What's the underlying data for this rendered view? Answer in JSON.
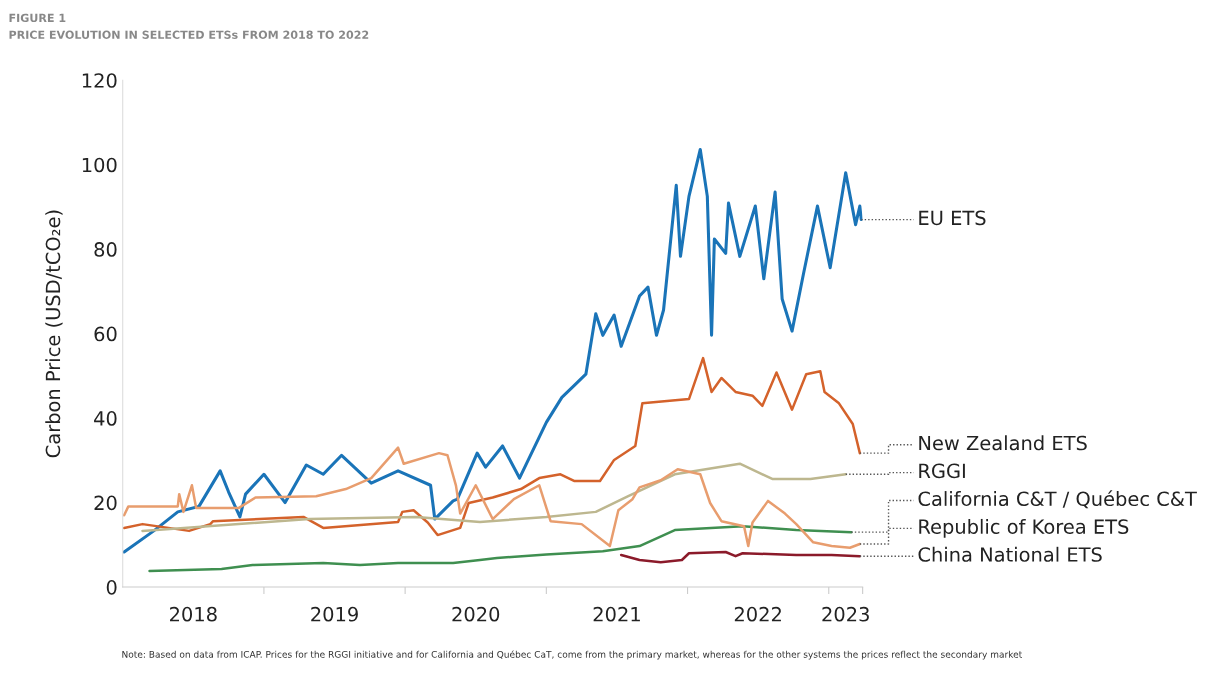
{
  "chart_data": {
    "type": "line",
    "title": "FIGURE 1",
    "subtitle": "PRICE EVOLUTION IN SELECTED ETSs FROM 2018 TO 2022",
    "ylabel": "Carbon Price (USD/tCO₂e)",
    "annotations": [
      "Note: Based on data from ICAP. Prices for the RGGI initiative and for California and Québec CaT, come from the primary market, whereas for the other systems the prices reflect the secondary market"
    ],
    "xlim": [
      2018,
      2023.24
    ],
    "ylim": [
      0,
      120
    ],
    "yticks": [
      0,
      20,
      40,
      60,
      80,
      100,
      120
    ],
    "xticks": [
      {
        "value": 2019,
        "label": null
      },
      {
        "value": 2020,
        "label": null
      },
      {
        "value": 2021,
        "label": null
      },
      {
        "value": 2022,
        "label": null
      },
      {
        "value": 2023,
        "label": null
      },
      {
        "value": 2023.24,
        "label": null
      },
      {
        "value": 2018.5,
        "label": "2018"
      },
      {
        "value": 2019.5,
        "label": "2019"
      },
      {
        "value": 2020.5,
        "label": "2020"
      },
      {
        "value": 2021.5,
        "label": "2021"
      },
      {
        "value": 2022.5,
        "label": "2022"
      },
      {
        "value": 2023.12,
        "label": "2023"
      }
    ],
    "grid": false,
    "legend": false,
    "marker": "none",
    "line_style": "solid",
    "series": [
      {
        "name": "EU ETS",
        "color": "#1a74b8",
        "x": [
          2018.01,
          2018.22,
          2018.39,
          2018.54,
          2018.69,
          2018.75,
          2018.83,
          2018.87,
          2019.0,
          2019.15,
          2019.3,
          2019.42,
          2019.55,
          2019.76,
          2019.95,
          2020.18,
          2020.21,
          2020.34,
          2020.37,
          2020.51,
          2020.57,
          2020.69,
          2020.81,
          2021.0,
          2021.11,
          2021.2,
          2021.28,
          2021.35,
          2021.4,
          2021.48,
          2021.53,
          2021.66,
          2021.72,
          2021.78,
          2021.83,
          2021.92,
          2021.95,
          2022.01,
          2022.09,
          2022.14,
          2022.17,
          2022.19,
          2022.27,
          2022.29,
          2022.37,
          2022.48,
          2022.54,
          2022.62,
          2022.67,
          2022.74,
          2022.82,
          2022.92,
          2023.01,
          2023.12,
          2023.19,
          2023.22,
          2023.23
        ],
        "values": [
          8.3,
          13.3,
          17.8,
          19.1,
          27.5,
          22.5,
          16.6,
          22,
          26.7,
          20,
          28.9,
          26.7,
          31.2,
          24.6,
          27.5,
          24.1,
          16.1,
          20.4,
          20.8,
          31.7,
          28.4,
          33.4,
          25.8,
          39,
          44.9,
          47.8,
          50.4,
          64.7,
          59.6,
          64.4,
          57,
          68.9,
          71,
          59.6,
          65.6,
          95.1,
          78.3,
          92.5,
          103.6,
          92.5,
          59.6,
          82.4,
          79,
          90.9,
          78.3,
          90.2,
          73,
          93.5,
          68.2,
          60.6,
          74,
          90.2,
          75.6,
          98.1,
          85.8,
          90.2,
          87
        ]
      },
      {
        "name": "New Zealand ETS",
        "color": "#d4622b",
        "x": [
          2018.01,
          2018.14,
          2018.47,
          2018.62,
          2018.64,
          2019.28,
          2019.42,
          2019.95,
          2019.98,
          2020.06,
          2020.16,
          2020.23,
          2020.39,
          2020.45,
          2020.62,
          2020.82,
          2020.95,
          2021.1,
          2021.2,
          2021.38,
          2021.48,
          2021.63,
          2021.68,
          2022.01,
          2022.11,
          2022.17,
          2022.24,
          2022.34,
          2022.46,
          2022.53,
          2022.63,
          2022.74,
          2022.84,
          2022.94,
          2022.97,
          2023.07,
          2023.17,
          2023.22
        ],
        "values": [
          14,
          14.9,
          13.3,
          14.9,
          15.6,
          16.6,
          14,
          15.4,
          17.8,
          18.2,
          15.3,
          12.3,
          14,
          19.9,
          21.2,
          23.2,
          25.8,
          26.7,
          25.1,
          25.1,
          30.1,
          33.4,
          43.5,
          44.5,
          54.2,
          46.2,
          49.5,
          46.2,
          45.3,
          42.9,
          50.8,
          42,
          50.4,
          51.1,
          46.2,
          43.6,
          38.6,
          31.7
        ]
      },
      {
        "name": "RGGI",
        "color": "#bdb78f",
        "x": [
          2018.14,
          2019.32,
          2020.08,
          2020.53,
          2021.0,
          2021.35,
          2021.58,
          2021.91,
          2022.37,
          2022.6,
          2022.87,
          2023.12
        ],
        "values": [
          13.3,
          16.1,
          16.6,
          15.4,
          16.6,
          17.8,
          21.5,
          26.7,
          29.2,
          25.6,
          25.6,
          26.7
        ]
      },
      {
        "name": "California C&T / Québec C&T",
        "color": "#3f8f50",
        "x": [
          2018.19,
          2018.7,
          2018.92,
          2019.42,
          2019.68,
          2019.95,
          2020.34,
          2020.53,
          2020.65,
          2021.0,
          2021.4,
          2021.66,
          2021.91,
          2022.39,
          2022.77,
          2023.16
        ],
        "values": [
          3.8,
          4.3,
          5.2,
          5.7,
          5.2,
          5.7,
          5.7,
          6.4,
          6.9,
          7.7,
          8.5,
          9.7,
          13.5,
          14.4,
          13.5,
          13
        ]
      },
      {
        "name": "Republic of Korea ETS",
        "color": "#e89d6e",
        "x": [
          2018.01,
          2018.04,
          2018.39,
          2018.4,
          2018.43,
          2018.49,
          2018.52,
          2018.82,
          2018.94,
          2019.37,
          2019.58,
          2019.76,
          2019.95,
          2019.99,
          2020.24,
          2020.3,
          2020.36,
          2020.39,
          2020.5,
          2020.62,
          2020.77,
          2020.95,
          2021.03,
          2021.25,
          2021.45,
          2021.51,
          2021.61,
          2021.66,
          2021.81,
          2021.93,
          2022.09,
          2022.16,
          2022.24,
          2022.4,
          2022.43,
          2022.46,
          2022.57,
          2022.69,
          2022.77,
          2022.89,
          2023.02,
          2023.15,
          2023.22
        ],
        "values": [
          17,
          19.1,
          19.1,
          22,
          17.8,
          24.1,
          18.7,
          18.7,
          21.2,
          21.5,
          23.2,
          25.8,
          33,
          29.2,
          31.7,
          31.2,
          24,
          17.4,
          24.1,
          16.1,
          20.8,
          24.1,
          15.6,
          14.9,
          9.7,
          18.2,
          20.8,
          23.6,
          25.3,
          27.9,
          26.7,
          19.9,
          15.6,
          14.4,
          9.7,
          15.3,
          20.4,
          17.4,
          14.9,
          10.6,
          9.7,
          9.3,
          10.2
        ]
      },
      {
        "name": "China National ETS",
        "color": "#8b1a2a",
        "x": [
          2021.53,
          2021.66,
          2021.81,
          2021.96,
          2022.01,
          2022.27,
          2022.34,
          2022.39,
          2022.77,
          2023.02,
          2023.22
        ],
        "values": [
          7.6,
          6.4,
          5.9,
          6.4,
          8,
          8.3,
          7.3,
          8,
          7.6,
          7.6,
          7.3
        ]
      }
    ]
  }
}
